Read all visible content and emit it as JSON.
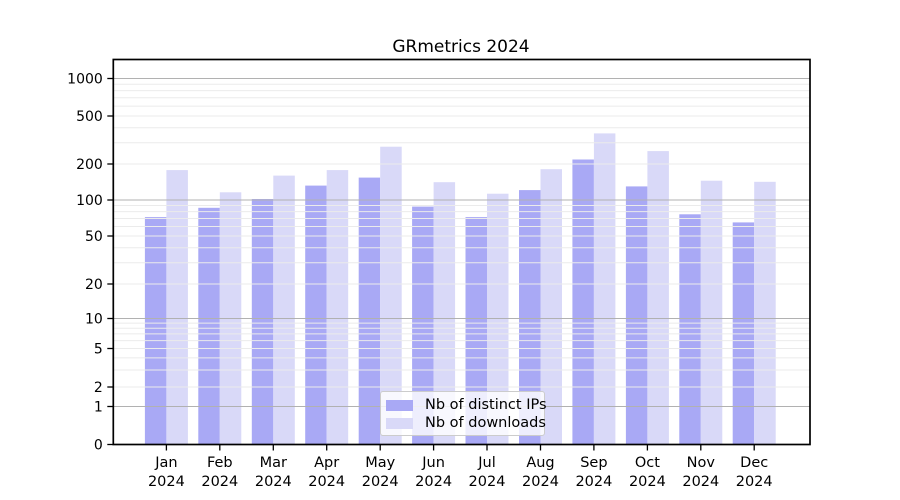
{
  "chart_data": {
    "type": "bar",
    "title": "GRmetrics 2024",
    "categories": [
      "Jan\n2024",
      "Feb\n2024",
      "Mar\n2024",
      "Apr\n2024",
      "May\n2024",
      "Jun\n2024",
      "Jul\n2024",
      "Aug\n2024",
      "Sep\n2024",
      "Oct\n2024",
      "Nov\n2024",
      "Dec\n2024"
    ],
    "series": [
      {
        "name": "Nb of distinct IPs",
        "color": "#a9a9f5",
        "values": [
          72,
          86,
          102,
          132,
          154,
          88,
          72,
          121,
          218,
          130,
          76,
          65
        ]
      },
      {
        "name": "Nb of downloads",
        "color": "#d9d9f8",
        "values": [
          178,
          116,
          160,
          178,
          278,
          141,
          113,
          181,
          359,
          256,
          145,
          142
        ]
      }
    ],
    "yscale": "symlog",
    "y_ticks": [
      0,
      1,
      2,
      5,
      10,
      20,
      50,
      100,
      200,
      500,
      1000
    ],
    "ylim": [
      0,
      1400
    ],
    "xlabel": "",
    "ylabel": "",
    "grid": true,
    "legend_position": "lower center",
    "colors": {
      "axis": "#000000",
      "major_grid": "#b1b1b1",
      "minor_grid": "#ebebeb",
      "background": "#ffffff"
    }
  }
}
